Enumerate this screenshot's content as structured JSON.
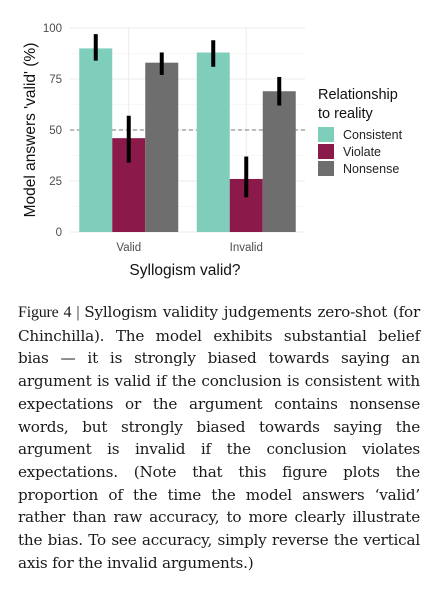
{
  "chart_data": {
    "type": "bar",
    "categories": [
      "Valid",
      "Invalid"
    ],
    "xlabel": "Syllogism valid?",
    "ylabel": "Model answers 'valid' (%)",
    "ylim": [
      0,
      100
    ],
    "yticks": [
      0,
      25,
      50,
      75,
      100
    ],
    "reference_line": 50,
    "grid": true,
    "legend_title": "Relationship\nto reality",
    "legend_position": "right",
    "series": [
      {
        "name": "Consistent",
        "color": "#7fcdbb",
        "values": [
          90,
          88
        ],
        "err_low": [
          84,
          81
        ],
        "err_high": [
          97,
          94
        ]
      },
      {
        "name": "Violate",
        "color": "#8b1a4a",
        "values": [
          46,
          26
        ],
        "err_low": [
          34,
          17
        ],
        "err_high": [
          57,
          37
        ]
      },
      {
        "name": "Nonsense",
        "color": "#6e6e6e",
        "values": [
          83,
          69
        ],
        "err_low": [
          77,
          62
        ],
        "err_high": [
          88,
          76
        ]
      }
    ]
  },
  "caption": {
    "label": "Figure 4 | ",
    "text": "Syllogism validity judgements zero-shot (for Chinchilla). The model exhibits substantial belief bias — it is strongly biased towards saying an argument is valid if the conclusion is consistent with expectations or the argument contains nonsense words, but strongly biased towards saying the argument is invalid if the conclusion violates expectations. (Note that this figure plots the proportion of the time the model answers ‘valid’ rather than raw accuracy, to more clearly illustrate the bias. To see accuracy, simply reverse the vertical axis for the invalid arguments.)"
  }
}
